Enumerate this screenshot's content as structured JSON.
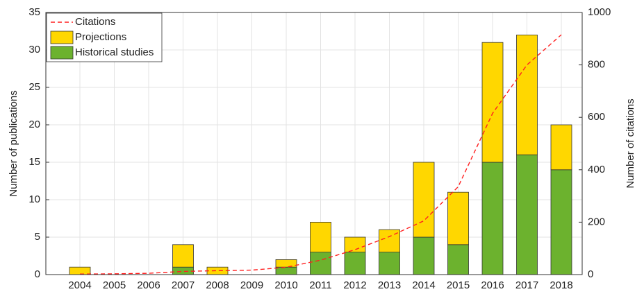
{
  "chart_data": {
    "type": "bar",
    "stacked": true,
    "grid": true,
    "legend": "upper-left",
    "ylabel": "Number of publications",
    "y2label": "Number of citations",
    "categories": [
      "2004",
      "2005",
      "2006",
      "2007",
      "2008",
      "2009",
      "2010",
      "2011",
      "2012",
      "2013",
      "2014",
      "2015",
      "2016",
      "2017",
      "2018"
    ],
    "series": [
      {
        "name": "Citations",
        "type": "line",
        "axis": "y2",
        "color": "#ff2020",
        "dashed": true,
        "values": [
          2,
          3,
          5,
          12,
          15,
          17,
          28,
          55,
          95,
          145,
          205,
          335,
          615,
          800,
          915
        ]
      },
      {
        "name": "Projections",
        "type": "bar",
        "color": "#ffd700",
        "values": [
          1,
          0,
          0,
          3,
          1,
          0,
          1,
          4,
          2,
          3,
          10,
          7,
          16,
          16,
          6
        ]
      },
      {
        "name": "Historical studies",
        "type": "bar",
        "color": "#6cb22e",
        "values": [
          0,
          0,
          0,
          1,
          0,
          0,
          1,
          3,
          3,
          3,
          5,
          4,
          15,
          16,
          14
        ]
      }
    ],
    "ylim": [
      0,
      35
    ],
    "yticks": [
      0,
      5,
      10,
      15,
      20,
      25,
      30,
      35
    ],
    "y2lim": [
      0,
      1000
    ],
    "y2ticks": [
      0,
      200,
      400,
      600,
      800,
      1000
    ]
  }
}
